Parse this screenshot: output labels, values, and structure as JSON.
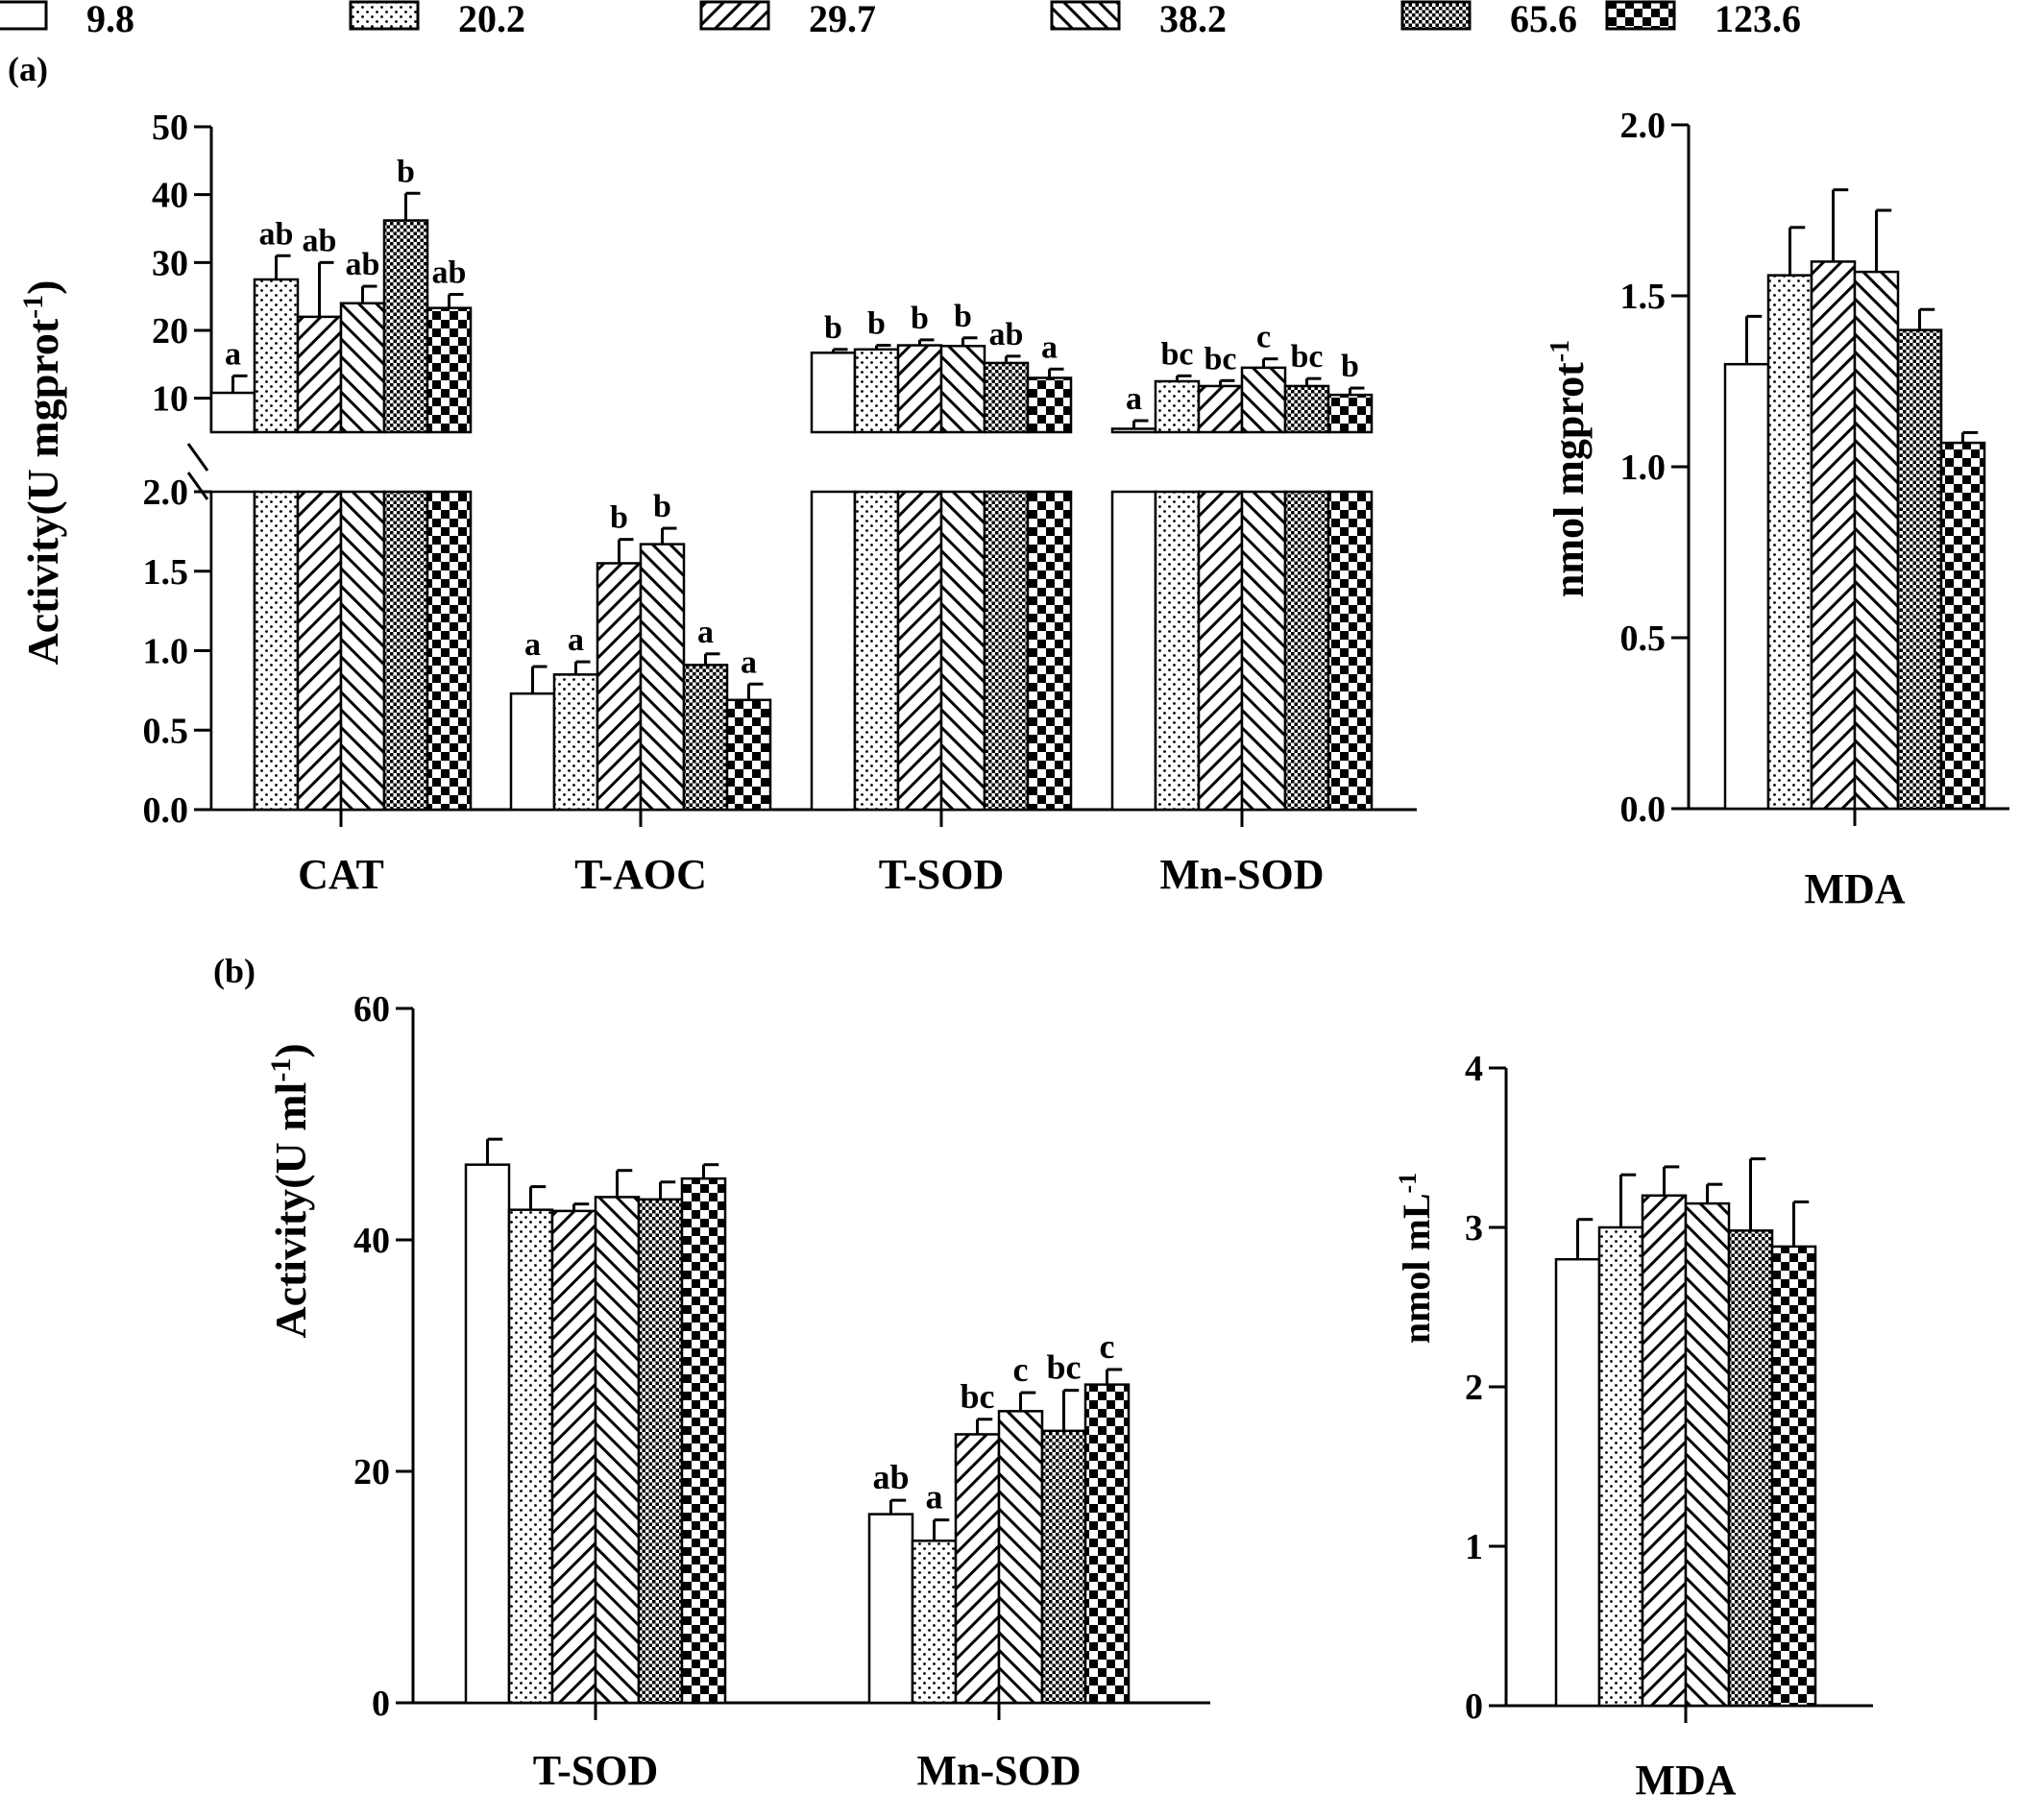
{
  "legend": {
    "entries": [
      "9.8",
      "20.2",
      "29.7",
      "38.2",
      "65.6",
      "123.6"
    ],
    "patterns": [
      "open",
      "dots",
      "fwd-hatch",
      "back-hatch",
      "fine-check",
      "coarse-check"
    ]
  },
  "panel_a": {
    "label": "(a)",
    "ylabel_main": "Activity(U mgprot",
    "ylabel_sup": "-1",
    "ylabel_tail": ")",
    "ylabel_mda_main": "nmol mgprot",
    "ylabel_mda_sup": "-1"
  },
  "panel_b": {
    "label": "(b)",
    "ylabel_main": "Activity(U ml",
    "ylabel_sup": "-1",
    "ylabel_tail": ")",
    "ylabel_mda_main": "nmol mL",
    "ylabel_mda_sup": "-1"
  },
  "chart_data": [
    {
      "type": "bar",
      "panel": "(a) left",
      "axis_break": true,
      "ylim_lower": [
        0,
        2.0
      ],
      "yticks_lower": [
        "0.0",
        "0.5",
        "1.0",
        "1.5",
        "2.0"
      ],
      "ylim_upper": [
        5,
        50
      ],
      "yticks_upper": [
        "10",
        "20",
        "30",
        "40",
        "50"
      ],
      "categories": [
        "CAT",
        "T-AOC",
        "T-SOD",
        "Mn-SOD"
      ],
      "series": [
        {
          "name": "9.8",
          "values": [
            10.8,
            0.73,
            16.7,
            5.5
          ],
          "errors": [
            2.5,
            0.17,
            0.5,
            1.2
          ],
          "letters": [
            "a",
            "a",
            "b",
            "a"
          ]
        },
        {
          "name": "20.2",
          "values": [
            27.5,
            0.85,
            17.2,
            12.5
          ],
          "errors": [
            3.5,
            0.08,
            0.6,
            0.8
          ],
          "letters": [
            "ab",
            "a",
            "b",
            "bc"
          ]
        },
        {
          "name": "29.7",
          "values": [
            22.0,
            1.55,
            17.8,
            11.8
          ],
          "errors": [
            8.0,
            0.15,
            0.8,
            0.8
          ],
          "letters": [
            "ab",
            "b",
            "b",
            "bc"
          ]
        },
        {
          "name": "38.2",
          "values": [
            24.0,
            1.67,
            17.7,
            14.5
          ],
          "errors": [
            2.5,
            0.1,
            1.2,
            1.3
          ],
          "letters": [
            "ab",
            "b",
            "b",
            "c"
          ]
        },
        {
          "name": "65.6",
          "values": [
            36.2,
            0.91,
            15.2,
            11.8
          ],
          "errors": [
            4.0,
            0.07,
            1.0,
            1.1
          ],
          "letters": [
            "b",
            "a",
            "ab",
            "bc"
          ]
        },
        {
          "name": "123.6",
          "values": [
            23.3,
            0.69,
            13.0,
            10.5
          ],
          "errors": [
            2.0,
            0.1,
            1.3,
            1.0
          ],
          "letters": [
            "ab",
            "a",
            "a",
            "b"
          ]
        }
      ]
    },
    {
      "type": "bar",
      "panel": "(a) right",
      "ylim": [
        0,
        2.0
      ],
      "yticks": [
        "0.0",
        "0.5",
        "1.0",
        "1.5",
        "2.0"
      ],
      "categories": [
        "MDA"
      ],
      "series": [
        {
          "name": "9.8",
          "values": [
            1.3
          ],
          "errors": [
            0.14
          ]
        },
        {
          "name": "20.2",
          "values": [
            1.56
          ],
          "errors": [
            0.14
          ]
        },
        {
          "name": "29.7",
          "values": [
            1.6
          ],
          "errors": [
            0.21
          ]
        },
        {
          "name": "38.2",
          "values": [
            1.57
          ],
          "errors": [
            0.18
          ]
        },
        {
          "name": "65.6",
          "values": [
            1.4
          ],
          "errors": [
            0.06
          ]
        },
        {
          "name": "123.6",
          "values": [
            1.07
          ],
          "errors": [
            0.03
          ]
        }
      ]
    },
    {
      "type": "bar",
      "panel": "(b) left",
      "ylim": [
        0,
        60
      ],
      "yticks": [
        "0",
        "20",
        "40",
        "60"
      ],
      "categories": [
        "T-SOD",
        "Mn-SOD"
      ],
      "series": [
        {
          "name": "9.8",
          "values": [
            46.5,
            16.3
          ],
          "errors": [
            2.2,
            1.2
          ],
          "letters": [
            "",
            "ab"
          ]
        },
        {
          "name": "20.2",
          "values": [
            42.6,
            14.0
          ],
          "errors": [
            2.0,
            1.8
          ],
          "letters": [
            "",
            "a"
          ]
        },
        {
          "name": "29.7",
          "values": [
            42.5,
            23.2
          ],
          "errors": [
            0.6,
            1.3
          ],
          "letters": [
            "",
            "bc"
          ]
        },
        {
          "name": "38.2",
          "values": [
            43.7,
            25.2
          ],
          "errors": [
            2.3,
            1.6
          ],
          "letters": [
            "",
            "c"
          ]
        },
        {
          "name": "65.6",
          "values": [
            43.5,
            23.5
          ],
          "errors": [
            1.5,
            3.5
          ],
          "letters": [
            "",
            "bc"
          ]
        },
        {
          "name": "123.6",
          "values": [
            45.3,
            27.5
          ],
          "errors": [
            1.2,
            1.3
          ],
          "letters": [
            "",
            "c"
          ]
        }
      ]
    },
    {
      "type": "bar",
      "panel": "(b) right",
      "ylim": [
        0,
        4
      ],
      "yticks": [
        "0",
        "1",
        "2",
        "3",
        "4"
      ],
      "categories": [
        "MDA"
      ],
      "series": [
        {
          "name": "9.8",
          "values": [
            2.8
          ],
          "errors": [
            0.25
          ]
        },
        {
          "name": "20.2",
          "values": [
            3.0
          ],
          "errors": [
            0.33
          ]
        },
        {
          "name": "29.7",
          "values": [
            3.2
          ],
          "errors": [
            0.18
          ]
        },
        {
          "name": "38.2",
          "values": [
            3.15
          ],
          "errors": [
            0.12
          ]
        },
        {
          "name": "65.6",
          "values": [
            2.98
          ],
          "errors": [
            0.45
          ]
        },
        {
          "name": "123.6",
          "values": [
            2.88
          ],
          "errors": [
            0.28
          ]
        }
      ]
    }
  ]
}
